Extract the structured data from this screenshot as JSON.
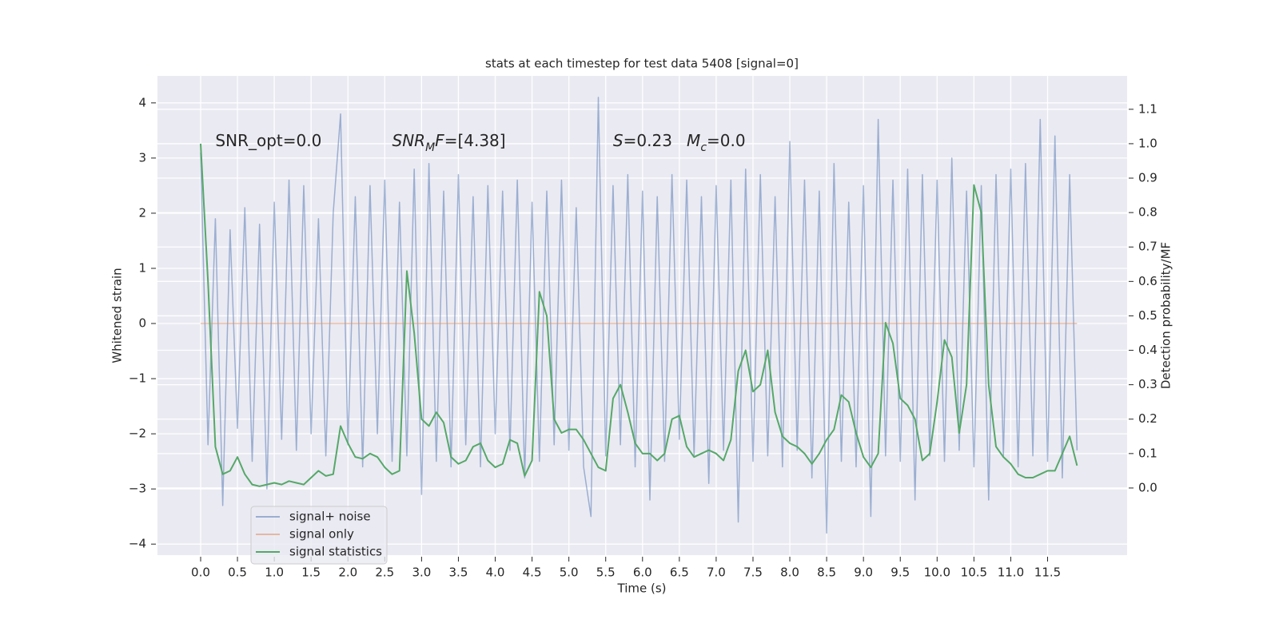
{
  "chart_data": {
    "type": "line",
    "title": "stats at each timestep for test data 5408 [signal=0]",
    "xlabel": "Time (s)",
    "ylabel": "Whitened strain",
    "y2label": "Detection probability/MF",
    "grid": true,
    "legend_loc": "lower left",
    "annotations": [
      [
        {
          "text": "SNR_opt=0.0"
        }
      ],
      [
        {
          "text": "SNR",
          "italic": true
        },
        {
          "text": "M",
          "italic": true,
          "sub": true
        },
        {
          "text": "F",
          "italic": true
        },
        {
          "text": "=[4.38]"
        }
      ],
      [
        {
          "text": "S",
          "italic": true
        },
        {
          "text": "=0.23"
        }
      ],
      [
        {
          "text": "M",
          "italic": true
        },
        {
          "text": "c",
          "italic": true,
          "sub": true
        },
        {
          "text": "=0.0"
        }
      ]
    ],
    "xlim": [
      -0.586,
      12.58
    ],
    "ylim": [
      -4.2,
      4.49
    ],
    "y2lim": [
      -0.195,
      1.197
    ],
    "xticks": [
      {
        "value": 0,
        "label": "0.0"
      },
      {
        "value": 0.5,
        "label": "0.5"
      },
      {
        "value": 1,
        "label": "1.0"
      },
      {
        "value": 1.5,
        "label": "1.5"
      },
      {
        "value": 2,
        "label": "2.0"
      },
      {
        "value": 2.5,
        "label": "2.5"
      },
      {
        "value": 3,
        "label": "3.0"
      },
      {
        "value": 3.5,
        "label": "3.5"
      },
      {
        "value": 4,
        "label": "4.0"
      },
      {
        "value": 4.5,
        "label": "4.5"
      },
      {
        "value": 5,
        "label": "5.0"
      },
      {
        "value": 5.5,
        "label": "5.5"
      },
      {
        "value": 6,
        "label": "6.0"
      },
      {
        "value": 6.5,
        "label": "6.5"
      },
      {
        "value": 7,
        "label": "7.0"
      },
      {
        "value": 7.5,
        "label": "7.5"
      },
      {
        "value": 8,
        "label": "8.0"
      },
      {
        "value": 8.5,
        "label": "8.5"
      },
      {
        "value": 9,
        "label": "9.0"
      },
      {
        "value": 9.5,
        "label": "9.5"
      },
      {
        "value": 10,
        "label": "10.0"
      },
      {
        "value": 10.5,
        "label": "10.5"
      },
      {
        "value": 11,
        "label": "11.0"
      },
      {
        "value": 11.5,
        "label": "11.5"
      }
    ],
    "yticks": [
      {
        "value": -4,
        "label": "−4"
      },
      {
        "value": -3,
        "label": "−3"
      },
      {
        "value": -2,
        "label": "−2"
      },
      {
        "value": -1,
        "label": "−1"
      },
      0,
      1,
      2,
      3,
      4
    ],
    "y2ticks": [
      {
        "value": 0,
        "label": "0.0"
      },
      {
        "value": 0.1,
        "label": "0.1"
      },
      {
        "value": 0.2,
        "label": "0.2"
      },
      {
        "value": 0.3,
        "label": "0.3"
      },
      {
        "value": 0.4,
        "label": "0.4"
      },
      {
        "value": 0.5,
        "label": "0.5"
      },
      {
        "value": 0.6,
        "label": "0.6"
      },
      {
        "value": 0.7,
        "label": "0.7"
      },
      {
        "value": 0.8,
        "label": "0.8"
      },
      {
        "value": 0.9,
        "label": "0.9"
      },
      {
        "value": 1,
        "label": "1.0"
      },
      {
        "value": 1.1,
        "label": "1.1"
      }
    ],
    "x": [
      0,
      0.1,
      0.2,
      0.3,
      0.4,
      0.5,
      0.6,
      0.7,
      0.8,
      0.9,
      1,
      1.1,
      1.2,
      1.3,
      1.4,
      1.5,
      1.6,
      1.7,
      1.8,
      1.9,
      2,
      2.1,
      2.2,
      2.3,
      2.4,
      2.5,
      2.6,
      2.7,
      2.8,
      2.9,
      3,
      3.1,
      3.2,
      3.3,
      3.4,
      3.5,
      3.6,
      3.7,
      3.8,
      3.9,
      4,
      4.1,
      4.2,
      4.3,
      4.4,
      4.5,
      4.6,
      4.7,
      4.8,
      4.9,
      5,
      5.1,
      5.2,
      5.3,
      5.4,
      5.5,
      5.6,
      5.7,
      5.8,
      5.9,
      6,
      6.1,
      6.2,
      6.3,
      6.4,
      6.5,
      6.6,
      6.7,
      6.8,
      6.9,
      7,
      7.1,
      7.2,
      7.3,
      7.4,
      7.5,
      7.6,
      7.7,
      7.8,
      7.9,
      8,
      8.1,
      8.2,
      8.3,
      8.4,
      8.5,
      8.6,
      8.7,
      8.8,
      8.9,
      9,
      9.1,
      9.2,
      9.3,
      9.4,
      9.5,
      9.6,
      9.7,
      9.8,
      9.9,
      10,
      10.1,
      10.2,
      10.3,
      10.4,
      10.5,
      10.6,
      10.7,
      10.8,
      10.9,
      11,
      11.1,
      11.2,
      11.3,
      11.4,
      11.5,
      11.6,
      11.7,
      11.8,
      11.9
    ],
    "series": [
      {
        "name": "signal+ noise",
        "color": "#4c72b0",
        "alpha": 0.5,
        "axis": "y",
        "values": [
          3.1,
          -2.2,
          1.9,
          -3.3,
          1.7,
          -1.9,
          2.1,
          -2.5,
          1.8,
          -3.0,
          2.2,
          -2.1,
          2.6,
          -2.3,
          2.5,
          -2.0,
          1.9,
          -2.4,
          2.0,
          3.8,
          -2.2,
          2.3,
          -2.6,
          2.5,
          -2.0,
          2.6,
          -2.5,
          2.2,
          -2.4,
          2.8,
          -3.1,
          2.9,
          -2.5,
          2.4,
          -2.6,
          2.7,
          -2.2,
          2.3,
          -2.6,
          2.5,
          -2.0,
          2.4,
          -2.3,
          2.6,
          -2.8,
          2.2,
          -2.5,
          2.4,
          -2.2,
          2.6,
          -2.3,
          2.1,
          -2.6,
          -3.5,
          4.1,
          -2.4,
          2.5,
          -2.2,
          2.7,
          -2.6,
          2.4,
          -3.2,
          2.3,
          -2.5,
          2.7,
          -2.1,
          2.6,
          -2.4,
          2.3,
          -2.9,
          2.5,
          -2.3,
          2.6,
          -3.6,
          2.8,
          -2.5,
          2.7,
          -2.4,
          2.3,
          -2.6,
          3.3,
          -2.3,
          2.6,
          -2.8,
          2.4,
          -3.8,
          2.9,
          -2.5,
          2.2,
          -2.6,
          2.5,
          -3.5,
          3.7,
          -2.4,
          2.6,
          -2.5,
          2.8,
          -3.2,
          2.7,
          -2.4,
          2.6,
          -2.5,
          3.0,
          -2.3,
          2.4,
          -2.6,
          2.5,
          -3.2,
          2.7,
          -2.4,
          2.8,
          -2.6,
          2.9,
          -2.4,
          3.7,
          -2.5,
          3.4,
          -2.8,
          2.7,
          -2.3
        ]
      },
      {
        "name": "signal only",
        "color": "#dd8452",
        "alpha": 0.5,
        "axis": "y",
        "values": [
          0,
          0,
          0,
          0,
          0,
          0,
          0,
          0,
          0,
          0,
          0,
          0,
          0,
          0,
          0,
          0,
          0,
          0,
          0,
          0,
          0,
          0,
          0,
          0,
          0,
          0,
          0,
          0,
          0,
          0,
          0,
          0,
          0,
          0,
          0,
          0,
          0,
          0,
          0,
          0,
          0,
          0,
          0,
          0,
          0,
          0,
          0,
          0,
          0,
          0,
          0,
          0,
          0,
          0,
          0,
          0,
          0,
          0,
          0,
          0,
          0,
          0,
          0,
          0,
          0,
          0,
          0,
          0,
          0,
          0,
          0,
          0,
          0,
          0,
          0,
          0,
          0,
          0,
          0,
          0,
          0,
          0,
          0,
          0,
          0,
          0,
          0,
          0,
          0,
          0,
          0,
          0,
          0,
          0,
          0,
          0,
          0,
          0,
          0,
          0,
          0,
          0,
          0,
          0,
          0,
          0,
          0,
          0,
          0,
          0,
          0,
          0,
          0,
          0,
          0,
          0,
          0,
          0,
          0,
          0
        ]
      },
      {
        "name": "signal statistics",
        "color": "#55a868",
        "alpha": 1,
        "axis": "y2",
        "values": [
          1.0,
          0.6,
          0.12,
          0.04,
          0.05,
          0.09,
          0.04,
          0.01,
          0.005,
          0.01,
          0.015,
          0.01,
          0.02,
          0.015,
          0.01,
          0.03,
          0.05,
          0.035,
          0.04,
          0.18,
          0.13,
          0.09,
          0.085,
          0.1,
          0.09,
          0.06,
          0.04,
          0.05,
          0.63,
          0.45,
          0.2,
          0.18,
          0.22,
          0.19,
          0.09,
          0.07,
          0.08,
          0.12,
          0.13,
          0.08,
          0.06,
          0.07,
          0.14,
          0.13,
          0.035,
          0.08,
          0.57,
          0.5,
          0.2,
          0.16,
          0.17,
          0.17,
          0.14,
          0.1,
          0.06,
          0.05,
          0.26,
          0.3,
          0.22,
          0.13,
          0.1,
          0.1,
          0.08,
          0.1,
          0.2,
          0.21,
          0.12,
          0.09,
          0.1,
          0.11,
          0.1,
          0.08,
          0.14,
          0.34,
          0.4,
          0.28,
          0.3,
          0.4,
          0.22,
          0.15,
          0.13,
          0.12,
          0.1,
          0.07,
          0.1,
          0.14,
          0.17,
          0.27,
          0.25,
          0.16,
          0.09,
          0.06,
          0.1,
          0.48,
          0.42,
          0.26,
          0.24,
          0.2,
          0.08,
          0.1,
          0.25,
          0.43,
          0.38,
          0.16,
          0.3,
          0.88,
          0.8,
          0.3,
          0.12,
          0.09,
          0.07,
          0.04,
          0.03,
          0.03,
          0.04,
          0.05,
          0.05,
          0.1,
          0.15,
          0.065
        ]
      }
    ]
  }
}
